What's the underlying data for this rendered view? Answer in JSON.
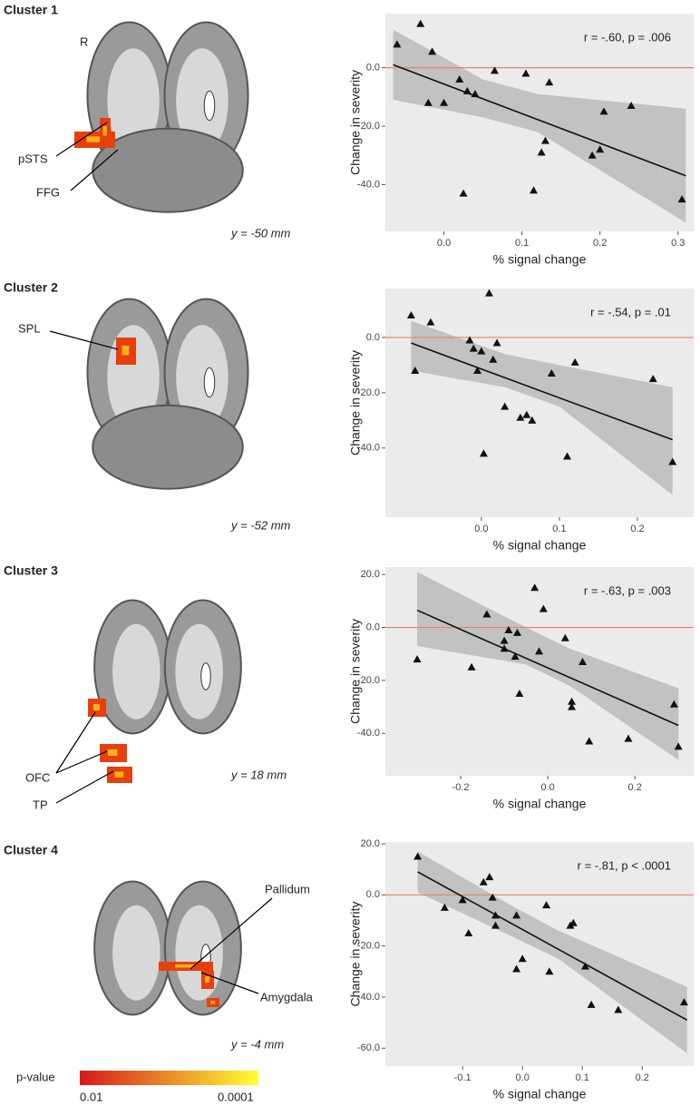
{
  "figure": {
    "panels": [
      {
        "title": "Cluster 1",
        "labels": [
          "R",
          "pSTS",
          "FFG"
        ],
        "coordinate": "y = -50 mm"
      },
      {
        "title": "Cluster 2",
        "labels": [
          "SPL"
        ],
        "coordinate": "y = -52 mm"
      },
      {
        "title": "Cluster 3",
        "labels": [
          "OFC",
          "TP"
        ],
        "coordinate": "y = 18 mm"
      },
      {
        "title": "Cluster 4",
        "labels": [
          "Pallidum",
          "Amygdala"
        ],
        "coordinate": "y = -4 mm"
      }
    ],
    "colorbar": {
      "title": "p-value",
      "min_label": "0.01",
      "max_label": "0.0001",
      "colors": [
        "#d7191c",
        "#ffff33"
      ]
    }
  },
  "chart_data": [
    {
      "type": "scatter",
      "annotation": "r = -.60, p = .006",
      "xlabel": "% signal change",
      "ylabel": "Change in severity",
      "color": "#111111",
      "x": [
        -0.06,
        -0.03,
        -0.015,
        -0.02,
        0.0,
        0.02,
        0.03,
        0.04,
        0.065,
        0.105,
        0.135,
        0.025,
        0.115,
        0.13,
        0.125,
        0.19,
        0.2,
        0.205,
        0.24,
        0.305
      ],
      "values": [
        8,
        15,
        5.5,
        -12,
        -12,
        -4,
        -8,
        -9,
        -1,
        -2,
        -5,
        -43,
        -42,
        -25,
        -29,
        -30,
        -28,
        -15,
        -13,
        -45
      ],
      "fit": {
        "x": [
          -0.065,
          0.31
        ],
        "y": [
          1,
          -37
        ]
      },
      "ci": {
        "x": [
          -0.065,
          0.05,
          0.12,
          0.31
        ],
        "upper": [
          13,
          -4,
          -9,
          -14
        ],
        "lower": [
          -11,
          -17,
          -22,
          -53
        ]
      },
      "hline": 0,
      "hline_color": "#e8806f",
      "xlim": [
        -0.075,
        0.32
      ],
      "ylim": [
        -56,
        18.5
      ],
      "xticks": [
        {
          "value": 0,
          "label": "0.0"
        },
        {
          "value": 0.1,
          "label": "0.1"
        },
        {
          "value": 0.2,
          "label": "0.2"
        },
        {
          "value": 0.3,
          "label": "0.3"
        }
      ],
      "yticks": [
        {
          "value": 0,
          "label": "0.0"
        },
        {
          "value": -20,
          "label": "-20.0"
        },
        {
          "value": -40,
          "label": "-40.0"
        }
      ]
    },
    {
      "type": "scatter",
      "annotation": "r = -.54, p = .01",
      "xlabel": "% signal change",
      "ylabel": "Change in severity",
      "color": "#111111",
      "x": [
        -0.09,
        -0.085,
        -0.065,
        -0.015,
        -0.01,
        0.0,
        -0.005,
        0.01,
        0.015,
        0.02,
        0.003,
        0.03,
        0.05,
        0.058,
        0.065,
        0.09,
        0.11,
        0.12,
        0.22,
        0.245
      ],
      "values": [
        8,
        -12,
        5.5,
        -1,
        -4,
        -5,
        -12,
        16,
        -8,
        -2,
        -42,
        -25,
        -29,
        -28,
        -30,
        -13,
        -43,
        -9,
        -15,
        -45
      ],
      "fit": {
        "x": [
          -0.09,
          0.245
        ],
        "y": [
          -2,
          -37
        ]
      },
      "ci": {
        "x": [
          -0.09,
          0.03,
          0.1,
          0.245
        ],
        "upper": [
          6,
          -6,
          -10,
          -18
        ],
        "lower": [
          -12,
          -18,
          -25,
          -57
        ]
      },
      "hline": 0,
      "hline_color": "#e8806f",
      "xlim": [
        -0.123,
        0.272
      ],
      "ylim": [
        -65,
        17.7
      ],
      "xticks": [
        {
          "value": 0,
          "label": "0.0"
        },
        {
          "value": 0.1,
          "label": "0.1"
        },
        {
          "value": 0.2,
          "label": "0.2"
        }
      ],
      "yticks": [
        {
          "value": 0,
          "label": "0.0"
        },
        {
          "value": -20,
          "label": "-20.0"
        },
        {
          "value": -40,
          "label": "-40.0"
        }
      ]
    },
    {
      "type": "scatter",
      "annotation": "r = -.63, p = .003",
      "xlabel": "% signal change",
      "ylabel": "Change in severity",
      "color": "#111111",
      "x": [
        -0.3,
        -0.175,
        -0.14,
        -0.1,
        -0.09,
        -0.1,
        -0.07,
        -0.075,
        -0.065,
        -0.03,
        -0.01,
        -0.02,
        0.04,
        0.055,
        0.055,
        0.08,
        0.095,
        0.185,
        0.29,
        0.3
      ],
      "values": [
        -12,
        -15,
        5,
        -8,
        -1,
        -5,
        -2,
        -11,
        -25,
        15,
        7,
        -9,
        -4,
        -28,
        -30,
        -13,
        -43,
        -42,
        -29,
        -45
      ],
      "fit": {
        "x": [
          -0.3,
          0.3
        ],
        "y": [
          6.5,
          -37
        ]
      },
      "ci": {
        "x": [
          -0.3,
          -0.05,
          0.05,
          0.3
        ],
        "upper": [
          21,
          0,
          -8,
          -23
        ],
        "lower": [
          -7,
          -14,
          -22,
          -50
        ]
      },
      "hline": 0,
      "hline_color": "#e8806f",
      "xlim": [
        -0.373,
        0.335
      ],
      "ylim": [
        -56,
        22.8
      ],
      "xticks": [
        {
          "value": -0.2,
          "label": "-0.2"
        },
        {
          "value": 0,
          "label": "0.0"
        },
        {
          "value": 0.2,
          "label": "0.2"
        }
      ],
      "yticks": [
        {
          "value": 20,
          "label": "20.0"
        },
        {
          "value": 0,
          "label": "0.0"
        },
        {
          "value": -20,
          "label": "-20.0"
        },
        {
          "value": -40,
          "label": "-40.0"
        }
      ]
    },
    {
      "type": "scatter",
      "annotation": "r = -.81, p < .0001",
      "xlabel": "% signal change",
      "ylabel": "Change in severity",
      "color": "#111111",
      "x": [
        -0.175,
        -0.13,
        -0.1,
        -0.09,
        -0.065,
        -0.055,
        -0.05,
        -0.045,
        -0.045,
        -0.01,
        -0.01,
        0.0,
        0.04,
        0.045,
        0.08,
        0.085,
        0.105,
        0.115,
        0.16,
        0.27
      ],
      "values": [
        15,
        -5,
        -2,
        -15,
        5,
        7,
        -1,
        -12,
        -8,
        -8,
        -29,
        -25,
        -4,
        -30,
        -12,
        -11,
        -28,
        -43,
        -45,
        -42
      ],
      "fit": {
        "x": [
          -0.175,
          0.275
        ],
        "y": [
          9,
          -49
        ]
      },
      "ci": {
        "x": [
          -0.175,
          -0.02,
          0.06,
          0.275
        ],
        "upper": [
          17,
          -4,
          -14,
          -36
        ],
        "lower": [
          1,
          -16,
          -25,
          -62
        ]
      },
      "hline": 0,
      "hline_color": "#e8806f",
      "xlim": [
        -0.229,
        0.286
      ],
      "ylim": [
        -67,
        20.7
      ],
      "xticks": [
        {
          "value": -0.1,
          "label": "-0.1"
        },
        {
          "value": 0,
          "label": "0.0"
        },
        {
          "value": 0.1,
          "label": "0.1"
        },
        {
          "value": 0.2,
          "label": "0.2"
        }
      ],
      "yticks": [
        {
          "value": 20,
          "label": "20.0"
        },
        {
          "value": 0,
          "label": "0.0"
        },
        {
          "value": -20,
          "label": "-20.0"
        },
        {
          "value": -40,
          "label": "-40.0"
        },
        {
          "value": -60,
          "label": "-60.0"
        }
      ]
    }
  ]
}
